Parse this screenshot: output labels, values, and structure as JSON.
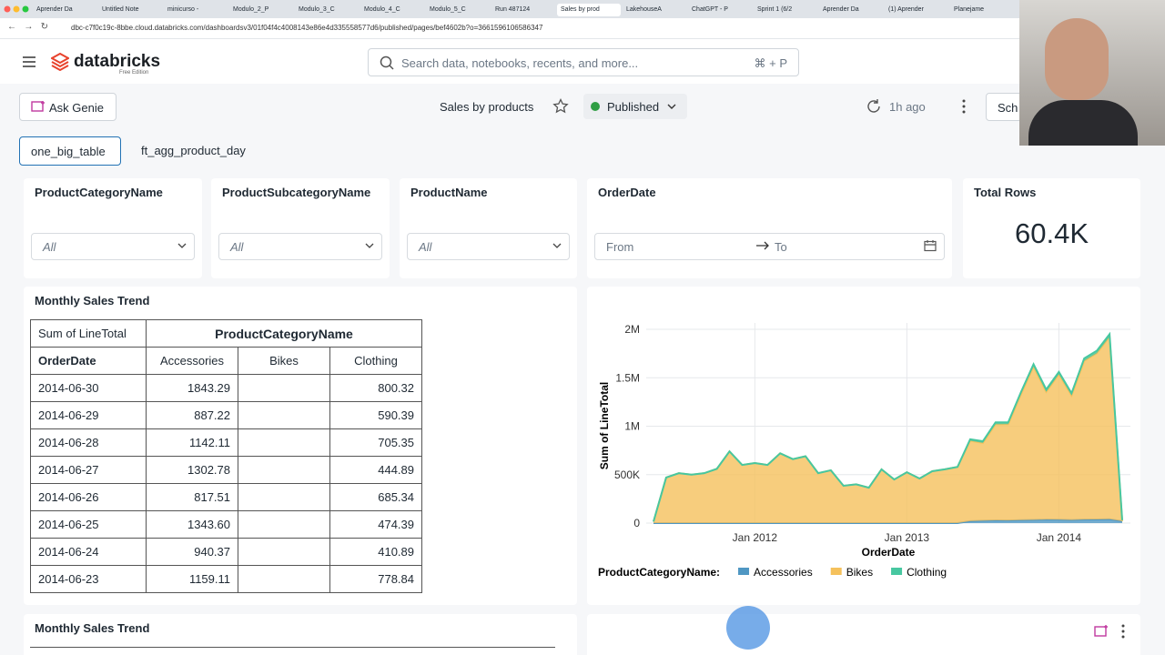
{
  "browser": {
    "tabs": [
      "Aprender Da",
      "Untitled Note",
      "minicurso -",
      "Modulo_2_P",
      "Modulo_3_C",
      "Modulo_4_C",
      "Modulo_5_C",
      "Run 487124",
      "Sales by prod",
      "LakehouseA",
      "ChatGPT - P",
      "Sprint 1 (6/2",
      "Aprender Da",
      "(1) Aprender",
      "Planejame"
    ],
    "url": "dbc-c7f0c19c-8bbe.cloud.databricks.com/dashboardsv3/01f04f4c4008143e86e4d335558577d6/published/pages/bef4602b?o=3661596106586347"
  },
  "header": {
    "logo": "databricks",
    "edition": "Free Edition",
    "search_placeholder": "Search data, notebooks, recents, and more...",
    "shortcut": "⌘ + P"
  },
  "toolbar": {
    "ask_genie": "Ask Genie",
    "title": "Sales by products",
    "status": "Published",
    "refreshed": "1h ago",
    "schedule": "Sch"
  },
  "pages": [
    "one_big_table",
    "ft_agg_product_day"
  ],
  "filters": [
    {
      "label": "ProductCategoryName",
      "value": "All"
    },
    {
      "label": "ProductSubcategoryName",
      "value": "All"
    },
    {
      "label": "ProductName",
      "value": "All"
    },
    {
      "label": "OrderDate",
      "from": "From",
      "to": "To"
    }
  ],
  "counter": {
    "label": "Total Rows",
    "value": "60.4K"
  },
  "pivot": {
    "title": "Monthly Sales Trend",
    "measure": "Sum of LineTotal",
    "column_field": "ProductCategoryName",
    "row_field": "OrderDate",
    "columns": [
      "Accessories",
      "Bikes",
      "Clothing"
    ],
    "rows": [
      [
        "2014-06-30",
        "1843.29",
        null,
        "800.32"
      ],
      [
        "2014-06-29",
        "887.22",
        null,
        "590.39"
      ],
      [
        "2014-06-28",
        "1142.11",
        null,
        "705.35"
      ],
      [
        "2014-06-27",
        "1302.78",
        null,
        "444.89"
      ],
      [
        "2014-06-26",
        "817.51",
        null,
        "685.34"
      ],
      [
        "2014-06-25",
        "1343.60",
        null,
        "474.39"
      ],
      [
        "2014-06-24",
        "940.37",
        null,
        "410.89"
      ],
      [
        "2014-06-23",
        "1159.11",
        null,
        "778.84"
      ]
    ]
  },
  "chart_data": {
    "type": "area",
    "stacked": true,
    "xlabel": "OrderDate",
    "ylabel": "Sum of LineTotal",
    "legend_title": "ProductCategoryName:",
    "grid": true,
    "x": [
      "2011-05",
      "2011-06",
      "2011-07",
      "2011-08",
      "2011-09",
      "2011-10",
      "2011-11",
      "2011-12",
      "2012-01",
      "2012-02",
      "2012-03",
      "2012-04",
      "2012-05",
      "2012-06",
      "2012-07",
      "2012-08",
      "2012-09",
      "2012-10",
      "2012-11",
      "2012-12",
      "2013-01",
      "2013-02",
      "2013-03",
      "2013-04",
      "2013-05",
      "2013-06",
      "2013-07",
      "2013-08",
      "2013-09",
      "2013-10",
      "2013-11",
      "2013-12",
      "2014-01",
      "2014-02",
      "2014-03",
      "2014-04",
      "2014-05",
      "2014-06"
    ],
    "series": [
      {
        "name": "Accessories",
        "color": "#4f97c3",
        "values": [
          0,
          0,
          0,
          0,
          0,
          0,
          0,
          0,
          0,
          0,
          0,
          0,
          0,
          0,
          0,
          0,
          0,
          0,
          0,
          0,
          0,
          0,
          0,
          0,
          0,
          20000,
          25000,
          28000,
          27000,
          30000,
          33000,
          36000,
          35000,
          32000,
          36000,
          37000,
          40000,
          20000
        ]
      },
      {
        "name": "Bikes",
        "color": "#f5c15c",
        "values": [
          15000,
          470000,
          515000,
          500000,
          515000,
          560000,
          740000,
          600000,
          620000,
          600000,
          720000,
          660000,
          690000,
          515000,
          545000,
          385000,
          400000,
          365000,
          555000,
          450000,
          525000,
          460000,
          535000,
          555000,
          580000,
          830000,
          802000,
          992000,
          994000,
          1298000,
          1583000,
          1319000,
          1501000,
          1286000,
          1639000,
          1717000,
          1883000,
          0
        ]
      },
      {
        "name": "Clothing",
        "color": "#47c7a0",
        "values": [
          0,
          0,
          0,
          0,
          0,
          0,
          0,
          0,
          0,
          0,
          0,
          0,
          0,
          0,
          0,
          0,
          0,
          0,
          0,
          0,
          0,
          0,
          0,
          0,
          0,
          15000,
          18000,
          20000,
          19000,
          22000,
          24000,
          25000,
          24000,
          22000,
          25000,
          26000,
          27000,
          10000
        ]
      }
    ],
    "xlim": [
      "2011-05",
      "2014-06"
    ],
    "xticks": [
      {
        "value": "2012-01",
        "label": "Jan 2012"
      },
      {
        "value": "2013-01",
        "label": "Jan 2013"
      },
      {
        "value": "2014-01",
        "label": "Jan 2014"
      }
    ],
    "ylim": [
      0,
      2000000
    ],
    "yticks": [
      0,
      {
        "value": 500000,
        "label": "500K"
      },
      {
        "value": 1000000,
        "label": "1M"
      },
      {
        "value": 1500000,
        "label": "1.5M"
      },
      {
        "value": 2000000,
        "label": "2M"
      }
    ]
  },
  "second_widget": {
    "title": "Monthly Sales Trend"
  }
}
